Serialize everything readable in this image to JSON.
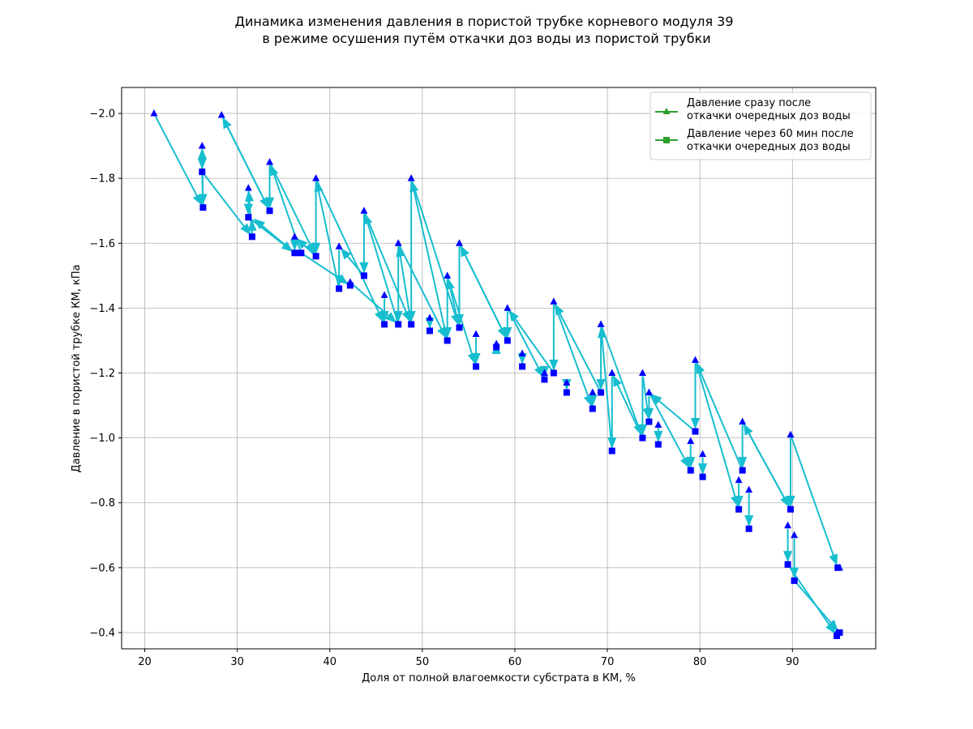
{
  "chart_data": {
    "type": "line",
    "title": [
      "Динамика изменения давления в пористой трубке корневого модуля 39",
      "в режиме осушения путём откачки доз воды из пористой трубки"
    ],
    "xlabel": "Доля от полной влагоемкости субстрата в КМ, %",
    "ylabel": "Давление в пористой трубке КМ, кПа",
    "xlim": [
      17.5,
      99
    ],
    "ylim": [
      -0.35,
      -2.08
    ],
    "y_inverted": true,
    "xticks": [
      20,
      30,
      40,
      50,
      60,
      70,
      80,
      90
    ],
    "xtick_labels": [
      "20",
      "30",
      "40",
      "50",
      "60",
      "70",
      "80",
      "90"
    ],
    "yticks": [
      -2.0,
      -1.8,
      -1.6,
      -1.4,
      -1.2,
      -1.0,
      -0.8,
      -0.6,
      -0.4
    ],
    "ytick_labels": [
      "−2.0",
      "−1.8",
      "−1.6",
      "−1.4",
      "−1.2",
      "−1.0",
      "−0.8",
      "−0.6",
      "−0.4"
    ],
    "grid": true,
    "legend_position": "top-right",
    "legend": [
      {
        "label_lines": [
          "Давление сразу после",
          "откачки очередных доз  воды"
        ],
        "marker": "triangle",
        "color": "#2ca02c"
      },
      {
        "label_lines": [
          "Давление через 60 мин после",
          "откачки очередных доз воды"
        ],
        "marker": "square",
        "color": "#2ca02c"
      }
    ],
    "colors": {
      "marker": "#0000ff",
      "arrow": "#17becf"
    },
    "series": [
      {
        "marker": "triangle",
        "points": [
          [
            21,
            -2.0
          ],
          [
            26.2,
            -1.9
          ],
          [
            28.3,
            -1.995
          ],
          [
            31.2,
            -1.77
          ],
          [
            33.5,
            -1.85
          ],
          [
            36.2,
            -1.62
          ],
          [
            38.5,
            -1.8
          ],
          [
            41,
            -1.59
          ],
          [
            42.2,
            -1.48
          ],
          [
            43.7,
            -1.7
          ],
          [
            45.9,
            -1.44
          ],
          [
            47.4,
            -1.6
          ],
          [
            48.8,
            -1.8
          ],
          [
            50.8,
            -1.37
          ],
          [
            52.7,
            -1.5
          ],
          [
            54,
            -1.6
          ],
          [
            55.8,
            -1.32
          ],
          [
            58,
            -1.29
          ],
          [
            59.2,
            -1.4
          ],
          [
            60.8,
            -1.26
          ],
          [
            63.2,
            -1.2
          ],
          [
            64.2,
            -1.42
          ],
          [
            65.6,
            -1.17
          ],
          [
            68.4,
            -1.14
          ],
          [
            69.3,
            -1.35
          ],
          [
            70.5,
            -1.2
          ],
          [
            73.8,
            -1.2
          ],
          [
            74.5,
            -1.14
          ],
          [
            75.5,
            -1.04
          ],
          [
            79,
            -0.99
          ],
          [
            79.5,
            -1.24
          ],
          [
            80.3,
            -0.95
          ],
          [
            84.2,
            -0.87
          ],
          [
            84.6,
            -1.05
          ],
          [
            85.3,
            -0.84
          ],
          [
            89.5,
            -0.73
          ],
          [
            89.8,
            -1.01
          ],
          [
            90.2,
            -0.7
          ],
          [
            94.8,
            -0.4
          ],
          [
            95.1,
            -0.6
          ]
        ]
      },
      {
        "marker": "square",
        "points": [
          [
            26.2,
            -1.82
          ],
          [
            26.3,
            -1.71
          ],
          [
            31.2,
            -1.68
          ],
          [
            31.6,
            -1.62
          ],
          [
            33.5,
            -1.7
          ],
          [
            36.2,
            -1.57
          ],
          [
            36.9,
            -1.57
          ],
          [
            38.5,
            -1.56
          ],
          [
            41,
            -1.46
          ],
          [
            42.2,
            -1.47
          ],
          [
            43.7,
            -1.5
          ],
          [
            45.9,
            -1.35
          ],
          [
            47.4,
            -1.35
          ],
          [
            48.8,
            -1.35
          ],
          [
            50.8,
            -1.33
          ],
          [
            52.7,
            -1.3
          ],
          [
            54,
            -1.34
          ],
          [
            55.8,
            -1.22
          ],
          [
            58,
            -1.28
          ],
          [
            59.2,
            -1.3
          ],
          [
            60.8,
            -1.22
          ],
          [
            63.2,
            -1.18
          ],
          [
            64.2,
            -1.2
          ],
          [
            65.6,
            -1.14
          ],
          [
            68.4,
            -1.09
          ],
          [
            69.3,
            -1.14
          ],
          [
            70.5,
            -0.96
          ],
          [
            73.8,
            -1.0
          ],
          [
            74.5,
            -1.05
          ],
          [
            75.5,
            -0.98
          ],
          [
            79,
            -0.9
          ],
          [
            79.5,
            -1.02
          ],
          [
            80.3,
            -0.88
          ],
          [
            84.2,
            -0.78
          ],
          [
            84.6,
            -0.9
          ],
          [
            85.3,
            -0.72
          ],
          [
            89.5,
            -0.61
          ],
          [
            89.8,
            -0.78
          ],
          [
            90.2,
            -0.56
          ],
          [
            94.8,
            -0.39
          ],
          [
            95.1,
            -0.4
          ],
          [
            94.9,
            -0.6
          ]
        ]
      }
    ],
    "arrows": [
      [
        21,
        -2.0,
        26.3,
        -1.71
      ],
      [
        26.2,
        -1.9,
        26.2,
        -1.82
      ],
      [
        26.2,
        -1.82,
        26.3,
        -1.71
      ],
      [
        26.3,
        -1.71,
        26.2,
        -1.9
      ],
      [
        26.2,
        -1.82,
        31.6,
        -1.62
      ],
      [
        28.3,
        -1.995,
        33.5,
        -1.7
      ],
      [
        31.2,
        -1.77,
        31.2,
        -1.68
      ],
      [
        31.6,
        -1.62,
        31.2,
        -1.77
      ],
      [
        31.2,
        -1.68,
        36.2,
        -1.57
      ],
      [
        31.6,
        -1.62,
        31.6,
        -1.68
      ],
      [
        33.5,
        -1.85,
        33.5,
        -1.7
      ],
      [
        33.5,
        -1.7,
        28.3,
        -1.995
      ],
      [
        33.5,
        -1.85,
        38.5,
        -1.56
      ],
      [
        36.2,
        -1.62,
        36.2,
        -1.57
      ],
      [
        36.9,
        -1.57,
        33.5,
        -1.85
      ],
      [
        36.2,
        -1.57,
        31.6,
        -1.68
      ],
      [
        36.9,
        -1.57,
        42.2,
        -1.47
      ],
      [
        38.5,
        -1.8,
        38.5,
        -1.56
      ],
      [
        38.5,
        -1.56,
        36.2,
        -1.62
      ],
      [
        38.5,
        -1.8,
        45.9,
        -1.35
      ],
      [
        41,
        -1.59,
        41,
        -1.46
      ],
      [
        41,
        -1.46,
        38.5,
        -1.8
      ],
      [
        42.2,
        -1.48,
        47.4,
        -1.35
      ],
      [
        43.7,
        -1.7,
        43.7,
        -1.5
      ],
      [
        43.7,
        -1.5,
        41,
        -1.59
      ],
      [
        43.7,
        -1.7,
        48.8,
        -1.35
      ],
      [
        45.9,
        -1.44,
        45.9,
        -1.35
      ],
      [
        47.4,
        -1.6,
        47.4,
        -1.35
      ],
      [
        47.4,
        -1.35,
        43.7,
        -1.7
      ],
      [
        47.4,
        -1.6,
        52.7,
        -1.3
      ],
      [
        48.8,
        -1.8,
        48.8,
        -1.35
      ],
      [
        48.8,
        -1.35,
        47.4,
        -1.6
      ],
      [
        48.8,
        -1.8,
        54,
        -1.34
      ],
      [
        50.8,
        -1.37,
        50.8,
        -1.33
      ],
      [
        52.7,
        -1.5,
        52.7,
        -1.3
      ],
      [
        52.7,
        -1.3,
        48.8,
        -1.8
      ],
      [
        52.7,
        -1.5,
        55.8,
        -1.22
      ],
      [
        54,
        -1.6,
        54,
        -1.34
      ],
      [
        54,
        -1.34,
        52.7,
        -1.5
      ],
      [
        54,
        -1.6,
        59.2,
        -1.3
      ],
      [
        55.8,
        -1.32,
        55.8,
        -1.22
      ],
      [
        58,
        -1.29,
        58,
        -1.28
      ],
      [
        59.2,
        -1.4,
        59.2,
        -1.3
      ],
      [
        59.2,
        -1.3,
        54,
        -1.6
      ],
      [
        59.2,
        -1.4,
        63.2,
        -1.18
      ],
      [
        60.8,
        -1.26,
        60.8,
        -1.22
      ],
      [
        63.2,
        -1.2,
        63.2,
        -1.18
      ],
      [
        64.2,
        -1.42,
        64.2,
        -1.2
      ],
      [
        64.2,
        -1.2,
        59.2,
        -1.4
      ],
      [
        64.2,
        -1.42,
        68.4,
        -1.09
      ],
      [
        65.6,
        -1.17,
        65.6,
        -1.14
      ],
      [
        68.4,
        -1.14,
        68.4,
        -1.09
      ],
      [
        69.3,
        -1.35,
        69.3,
        -1.14
      ],
      [
        69.3,
        -1.14,
        64.2,
        -1.42
      ],
      [
        69.3,
        -1.35,
        73.8,
        -1.0
      ],
      [
        70.5,
        -1.2,
        70.5,
        -0.96
      ],
      [
        70.5,
        -0.96,
        69.3,
        -1.35
      ],
      [
        73.8,
        -1.2,
        73.8,
        -1.0
      ],
      [
        73.8,
        -1.0,
        70.5,
        -1.2
      ],
      [
        73.8,
        -1.2,
        74.5,
        -1.05
      ],
      [
        74.5,
        -1.14,
        74.5,
        -1.05
      ],
      [
        74.5,
        -1.14,
        79,
        -0.9
      ],
      [
        75.5,
        -1.04,
        75.5,
        -0.98
      ],
      [
        79,
        -0.99,
        79,
        -0.9
      ],
      [
        79.5,
        -1.24,
        79.5,
        -1.02
      ],
      [
        79.5,
        -1.02,
        74.5,
        -1.14
      ],
      [
        79.5,
        -1.24,
        84.2,
        -0.78
      ],
      [
        80.3,
        -0.95,
        80.3,
        -0.88
      ],
      [
        84.2,
        -0.87,
        84.2,
        -0.78
      ],
      [
        84.6,
        -1.05,
        84.6,
        -0.9
      ],
      [
        84.6,
        -0.9,
        79.5,
        -1.24
      ],
      [
        84.6,
        -1.05,
        89.8,
        -0.78
      ],
      [
        85.3,
        -0.84,
        85.3,
        -0.72
      ],
      [
        89.5,
        -0.73,
        89.5,
        -0.61
      ],
      [
        89.8,
        -1.01,
        89.8,
        -0.78
      ],
      [
        89.8,
        -0.78,
        84.6,
        -1.05
      ],
      [
        89.8,
        -1.01,
        94.9,
        -0.6
      ],
      [
        90.2,
        -0.7,
        90.2,
        -0.56
      ],
      [
        89.5,
        -0.61,
        94.8,
        -0.39
      ],
      [
        90.2,
        -0.56,
        95.1,
        -0.4
      ]
    ]
  }
}
